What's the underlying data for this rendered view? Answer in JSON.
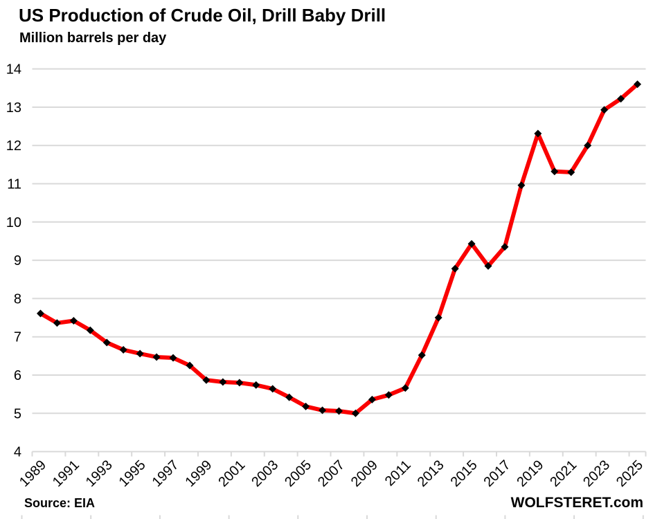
{
  "header": {
    "title": "US Production of Crude Oil, Drill Baby Drill",
    "subtitle": "Million barrels per day"
  },
  "footer": {
    "source": "Source: EIA",
    "branding": "WOLFSTERET.com"
  },
  "colors": {
    "line": "#FA0000",
    "marker": "#000000",
    "gridline": "#D9D9D9",
    "axis": "#D9D9D9",
    "text": "#000000",
    "background": "#FFFFFF"
  },
  "chart_data": {
    "type": "line",
    "title": "US Production of Crude Oil, Drill Baby Drill",
    "subtitle": "Million barrels per day",
    "xlabel": "",
    "ylabel": "Million barrels per day",
    "ylim": [
      4,
      14
    ],
    "y_ticks": [
      4,
      5,
      6,
      7,
      8,
      9,
      10,
      11,
      12,
      13,
      14
    ],
    "grid": "horizontal",
    "legend": "none",
    "marker_shape": "diamond",
    "x": [
      1989,
      1990,
      1991,
      1992,
      1993,
      1994,
      1995,
      1996,
      1997,
      1998,
      1999,
      2000,
      2001,
      2002,
      2003,
      2004,
      2005,
      2006,
      2007,
      2008,
      2009,
      2010,
      2011,
      2012,
      2013,
      2014,
      2015,
      2016,
      2017,
      2018,
      2019,
      2020,
      2021,
      2022,
      2023,
      2024,
      2025
    ],
    "x_tick_labels": [
      "1989",
      "1991",
      "1993",
      "1995",
      "1997",
      "1999",
      "2001",
      "2003",
      "2005",
      "2007",
      "2009",
      "2011",
      "2013",
      "2015",
      "2017",
      "2019",
      "2021",
      "2023",
      "2025"
    ],
    "series": [
      {
        "name": "US crude oil production (million barrels per day)",
        "values": [
          7.61,
          7.36,
          7.42,
          7.17,
          6.85,
          6.66,
          6.56,
          6.47,
          6.45,
          6.25,
          5.87,
          5.82,
          5.8,
          5.74,
          5.64,
          5.42,
          5.18,
          5.08,
          5.06,
          5.0,
          5.36,
          5.48,
          5.66,
          6.52,
          7.5,
          8.78,
          9.43,
          8.85,
          9.35,
          10.96,
          12.31,
          11.32,
          11.3,
          12.0,
          12.93,
          13.22,
          13.6
        ]
      }
    ]
  }
}
